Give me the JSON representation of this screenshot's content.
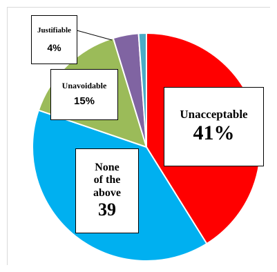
{
  "colors": {
    "unacceptable": "#ff0000",
    "none_of_the_above": "#00b0f0",
    "unavoidable": "#9bbb59",
    "justifiable": "#8064a2",
    "other": "#4bacc6"
  },
  "chart_data": {
    "type": "pie",
    "title": "",
    "start_angle_deg": 0,
    "direction": "clockwise",
    "slices": [
      {
        "label": "Unacceptable",
        "value_text": "41%",
        "value": 41,
        "color": "#ff0000"
      },
      {
        "label": "None of the above",
        "value_text": "39",
        "value": 39,
        "color": "#00b0f0"
      },
      {
        "label": "Unavoidable",
        "value_text": "15%",
        "value": 15,
        "color": "#9bbb59"
      },
      {
        "label": "Justifiable",
        "value_text": "4%",
        "value": 3.6,
        "color": "#8064a2"
      },
      {
        "label": "",
        "value_text": "",
        "value": 1.1,
        "color": "#4bacc6"
      }
    ],
    "legend": "none"
  },
  "labels": {
    "unacceptable": {
      "line1": "Unacceptable",
      "value": "41%"
    },
    "none": {
      "line1": "None",
      "line2": "of the",
      "line3": "above",
      "value": "39"
    },
    "unavoidable": {
      "line1": "Unavoidable",
      "value": "15%"
    },
    "justifiable": {
      "line1": "Justifiable",
      "value": "4%"
    }
  }
}
